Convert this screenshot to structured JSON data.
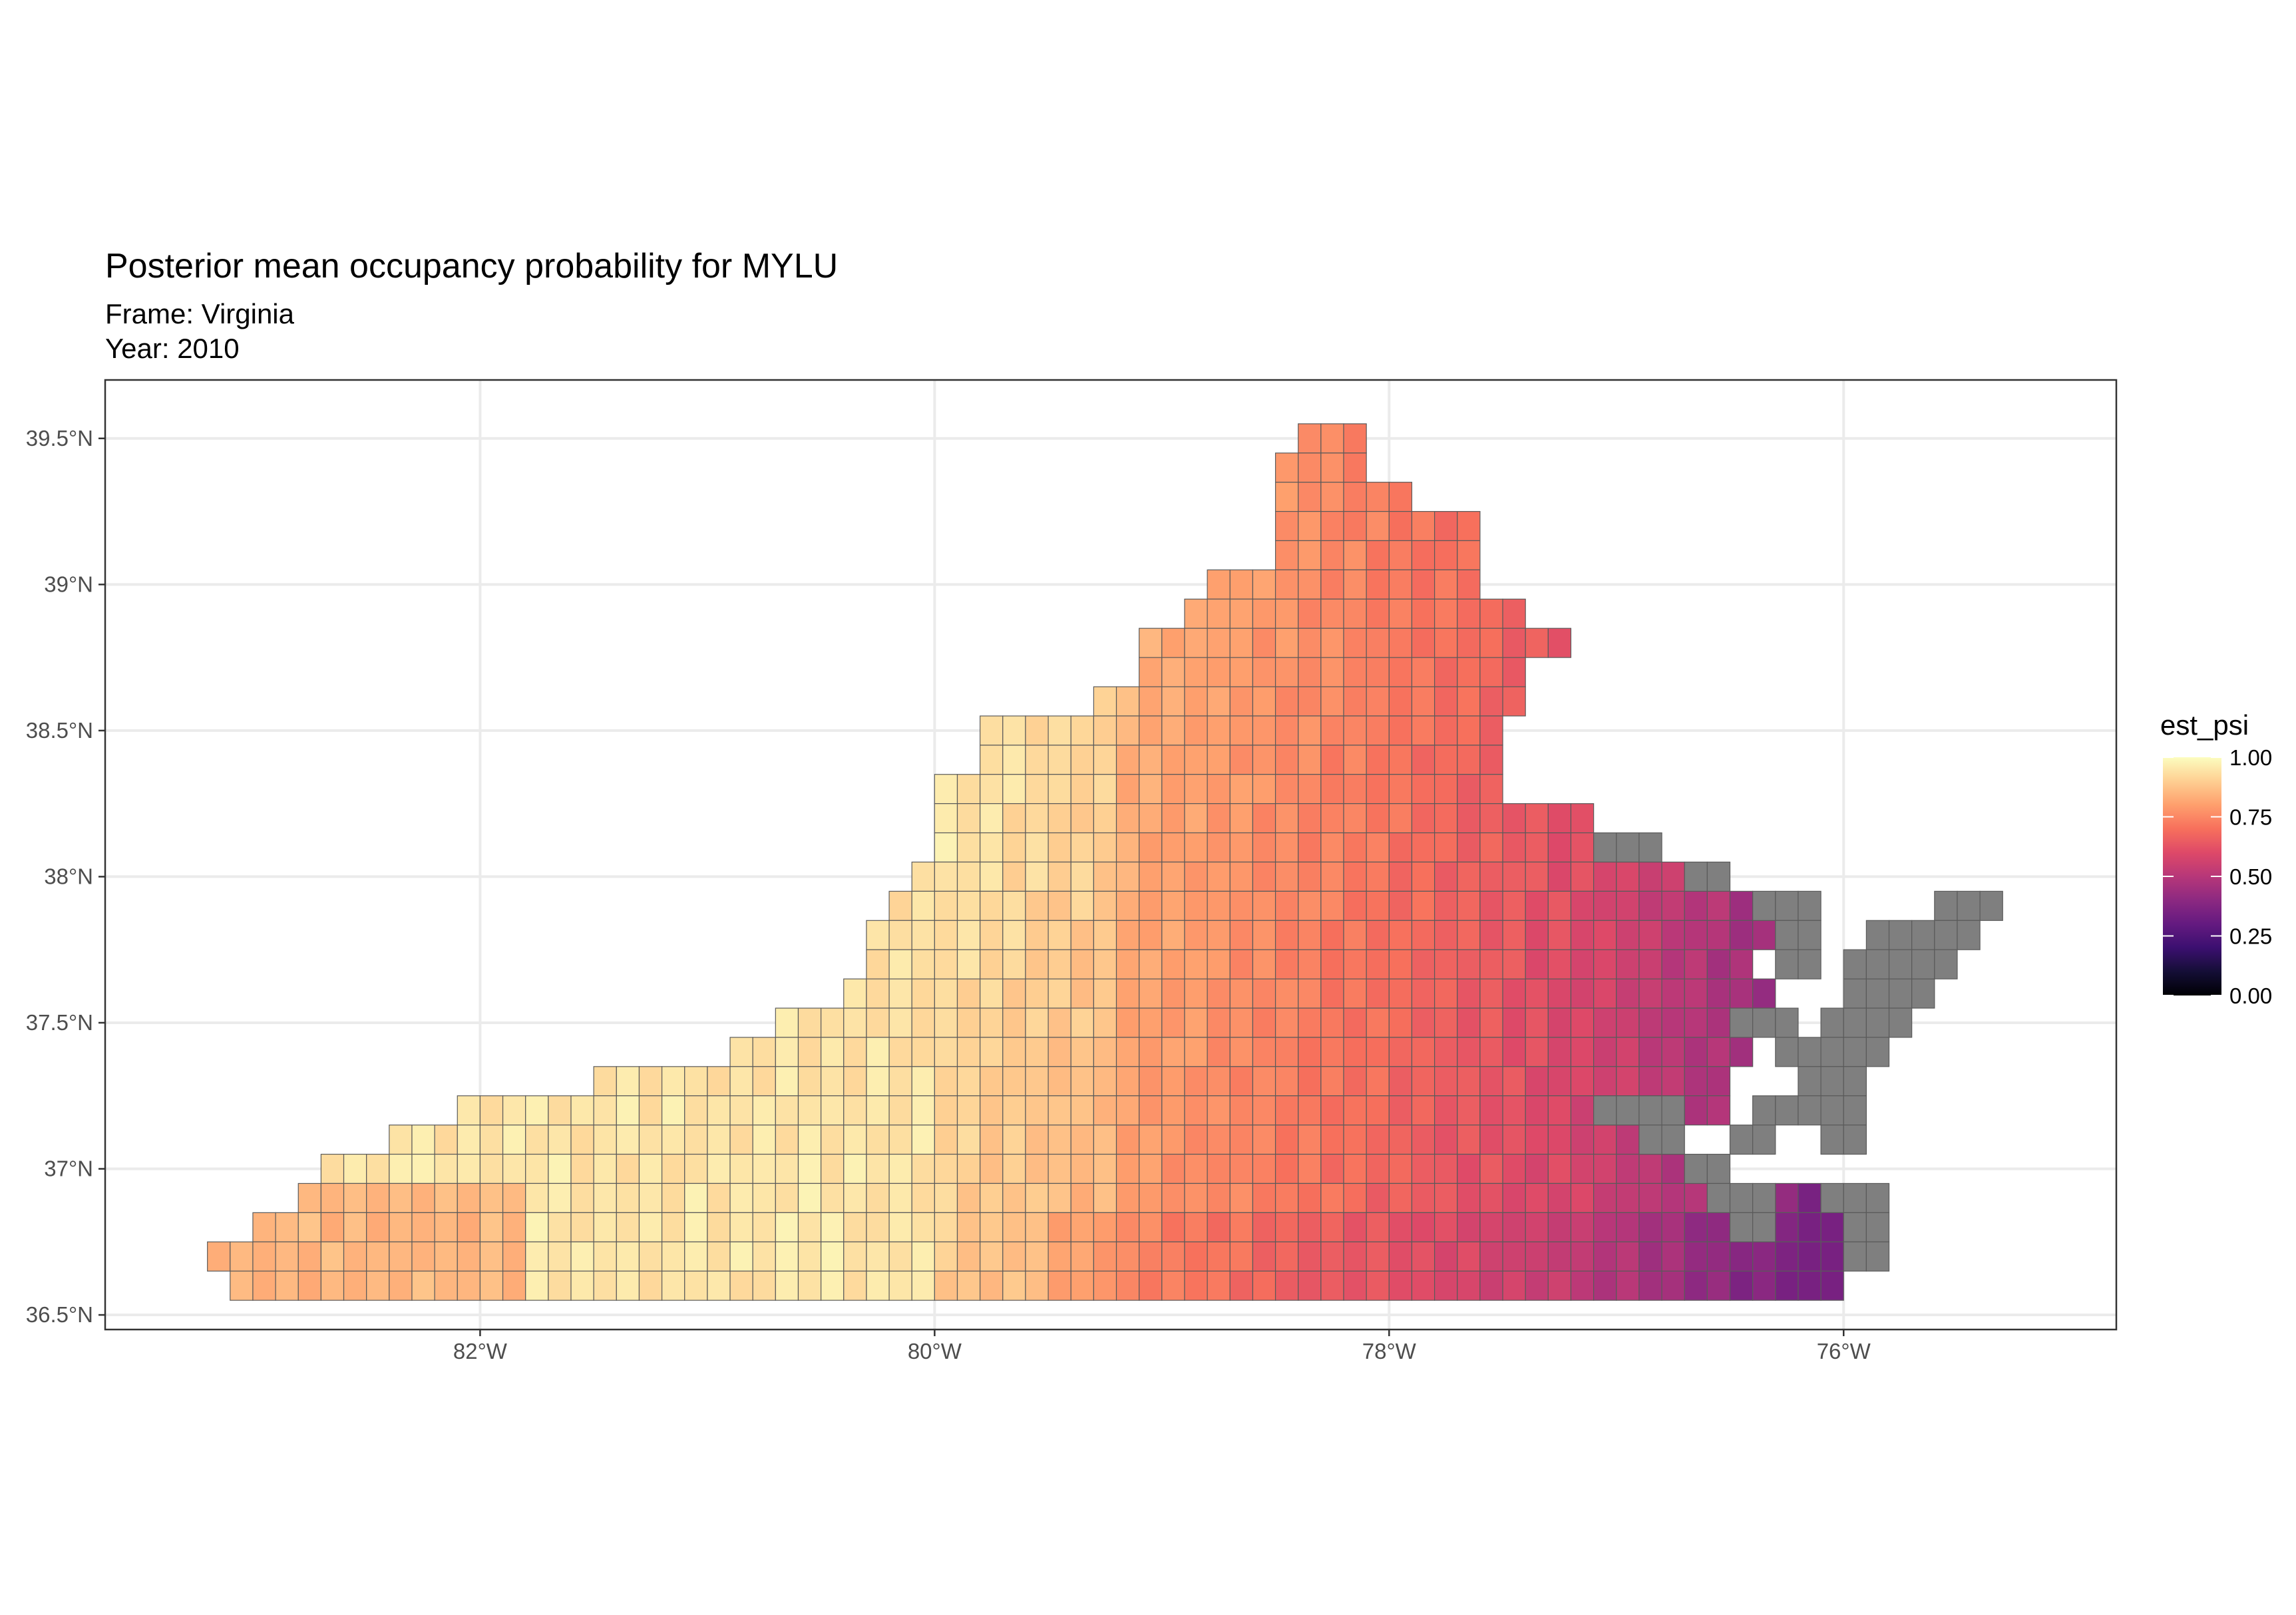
{
  "title": "Posterior mean occupancy probability for MYLU",
  "subtitle_frame": "Frame: Virginia",
  "subtitle_year": "Year: 2010",
  "colors": {
    "na_cell": "#7f7f7f",
    "cell_border": "#5a5a5a",
    "grid": "#ebebeb",
    "panel_border": "#333333"
  },
  "chart_data": {
    "type": "heatmap",
    "title": "Posterior mean occupancy probability for MYLU",
    "subtitle": [
      "Frame: Virginia",
      "Year: 2010"
    ],
    "x_ticks": [
      {
        "value": -82,
        "label": "82°W"
      },
      {
        "value": -80,
        "label": "80°W"
      },
      {
        "value": -78,
        "label": "78°W"
      },
      {
        "value": -76,
        "label": "76°W"
      }
    ],
    "y_ticks": [
      {
        "value": 36.5,
        "label": "36.5°N"
      },
      {
        "value": 37.0,
        "label": "37°N"
      },
      {
        "value": 37.5,
        "label": "37.5°N"
      },
      {
        "value": 38.0,
        "label": "38°N"
      },
      {
        "value": 38.5,
        "label": "38.5°N"
      },
      {
        "value": 39.0,
        "label": "39°N"
      },
      {
        "value": 39.5,
        "label": "39.5°N"
      }
    ],
    "xlim": [
      -83.65,
      -74.8
    ],
    "ylim": [
      36.45,
      39.7
    ],
    "grid": true,
    "cell_size_deg": [
      0.1,
      0.1
    ],
    "legend": {
      "title": "est_psi",
      "position": "right",
      "range": [
        0,
        1
      ],
      "ticks": [
        {
          "value": 1.0,
          "label": "1.00"
        },
        {
          "value": 0.75,
          "label": "0.75"
        },
        {
          "value": 0.5,
          "label": "0.50"
        },
        {
          "value": 0.25,
          "label": "0.25"
        },
        {
          "value": 0.0,
          "label": "0.00"
        }
      ],
      "na_label_shown": false
    },
    "colormap": {
      "name": "magma",
      "stops": [
        {
          "v": 0.0,
          "c": "#000004"
        },
        {
          "v": 0.1,
          "c": "#140e36"
        },
        {
          "v": 0.2,
          "c": "#3b0f70"
        },
        {
          "v": 0.3,
          "c": "#641a80"
        },
        {
          "v": 0.4,
          "c": "#8c2981"
        },
        {
          "v": 0.5,
          "c": "#b73779"
        },
        {
          "v": 0.6,
          "c": "#de4968"
        },
        {
          "v": 0.7,
          "c": "#f7705c"
        },
        {
          "v": 0.8,
          "c": "#fe9f6d"
        },
        {
          "v": 0.9,
          "c": "#fecf92"
        },
        {
          "v": 1.0,
          "c": "#fcfdbf"
        }
      ]
    },
    "region_cells": {
      "description_of_value_field": "approximate est_psi read from color",
      "rows": [
        {
          "lat": 39.5,
          "runs": [
            [
              -78.35,
              -78.15,
              0.9
            ]
          ]
        },
        {
          "lat": 39.4,
          "runs": [
            [
              -78.45,
              -78.15,
              0.88
            ]
          ]
        },
        {
          "lat": 39.3,
          "runs": [
            [
              -78.45,
              -77.95,
              0.86
            ]
          ]
        },
        {
          "lat": 39.2,
          "runs": [
            [
              -78.45,
              -77.65,
              0.85
            ]
          ]
        },
        {
          "lat": 39.1,
          "runs": [
            [
              -78.45,
              -77.65,
              0.84
            ]
          ]
        },
        {
          "lat": 39.0,
          "runs": [
            [
              -78.75,
              -77.65,
              0.85
            ]
          ]
        },
        {
          "lat": 38.9,
          "runs": [
            [
              -78.85,
              -77.45,
              0.83
            ]
          ]
        },
        {
          "lat": 38.8,
          "runs": [
            [
              -79.05,
              -77.25,
              0.8
            ]
          ]
        },
        {
          "lat": 38.7,
          "runs": [
            [
              -79.05,
              -77.45,
              0.8
            ]
          ]
        },
        {
          "lat": 38.6,
          "runs": [
            [
              -79.25,
              -77.45,
              0.8
            ]
          ]
        },
        {
          "lat": 38.5,
          "runs": [
            [
              -79.75,
              -77.55,
              0.8
            ]
          ]
        },
        {
          "lat": 38.4,
          "runs": [
            [
              -79.75,
              -77.55,
              0.8
            ]
          ]
        },
        {
          "lat": 38.3,
          "runs": [
            [
              -79.95,
              -77.55,
              0.8
            ]
          ]
        },
        {
          "lat": 38.2,
          "runs": [
            [
              -79.95,
              -77.15,
              0.8
            ]
          ]
        },
        {
          "lat": 38.1,
          "runs": [
            [
              -79.95,
              -76.95,
              0.78
            ]
          ]
        },
        {
          "lat": 38.0,
          "runs": [
            [
              -80.05,
              -76.75,
              0.75
            ]
          ]
        },
        {
          "lat": 37.9,
          "runs": [
            [
              -80.15,
              -76.35,
              0.74
            ]
          ]
        },
        {
          "lat": 37.8,
          "runs": [
            [
              -80.25,
              -76.35,
              0.73
            ]
          ]
        },
        {
          "lat": 37.7,
          "runs": [
            [
              -80.25,
              -76.45,
              0.72
            ]
          ]
        },
        {
          "lat": 37.6,
          "runs": [
            [
              -80.35,
              -76.35,
              0.72
            ]
          ]
        },
        {
          "lat": 37.5,
          "runs": [
            [
              -80.65,
              -76.35,
              0.72
            ]
          ]
        },
        {
          "lat": 37.4,
          "runs": [
            [
              -80.85,
              -76.45,
              0.72
            ]
          ]
        },
        {
          "lat": 37.3,
          "runs": [
            [
              -81.45,
              -76.55,
              0.72
            ]
          ]
        },
        {
          "lat": 37.2,
          "runs": [
            [
              -82.05,
              -76.55,
              0.72
            ]
          ]
        },
        {
          "lat": 37.1,
          "runs": [
            [
              -82.35,
              -76.75,
              0.72
            ]
          ]
        },
        {
          "lat": 37.0,
          "runs": [
            [
              -82.65,
              -76.65,
              0.72
            ]
          ]
        },
        {
          "lat": 36.9,
          "runs": [
            [
              -82.75,
              -76.15,
              0.7
            ]
          ]
        },
        {
          "lat": 36.8,
          "runs": [
            [
              -82.95,
              -75.95,
              0.68
            ]
          ]
        },
        {
          "lat": 36.7,
          "runs": [
            [
              -83.15,
              -75.95,
              0.68
            ]
          ]
        },
        {
          "lat": 36.6,
          "runs": [
            [
              -83.05,
              -76.05,
              0.66
            ]
          ]
        }
      ]
    },
    "na_cells": {
      "description": "grey cells with no estimate (Chesapeake Bay shore and Eastern Shore)",
      "rows": [
        {
          "lat": 38.1,
          "runs": [
            [
              -77.05,
              -76.85
            ]
          ]
        },
        {
          "lat": 38.0,
          "runs": [
            [
              -76.65,
              -76.55
            ]
          ]
        },
        {
          "lat": 37.9,
          "runs": [
            [
              -76.35,
              -76.15
            ],
            [
              -75.55,
              -75.35
            ]
          ]
        },
        {
          "lat": 37.8,
          "runs": [
            [
              -76.25,
              -76.15
            ],
            [
              -75.85,
              -75.45
            ]
          ]
        },
        {
          "lat": 37.7,
          "runs": [
            [
              -76.25,
              -76.15
            ],
            [
              -75.95,
              -75.55
            ]
          ]
        },
        {
          "lat": 37.6,
          "runs": [
            [
              -75.95,
              -75.65
            ]
          ]
        },
        {
          "lat": 37.5,
          "runs": [
            [
              -76.45,
              -76.25
            ],
            [
              -76.05,
              -75.75
            ]
          ]
        },
        {
          "lat": 37.4,
          "runs": [
            [
              -76.25,
              -76.15
            ],
            [
              -76.05,
              -75.85
            ]
          ]
        },
        {
          "lat": 37.3,
          "runs": [
            [
              -76.15,
              -75.95
            ]
          ]
        },
        {
          "lat": 37.2,
          "runs": [
            [
              -77.05,
              -76.75
            ],
            [
              -76.35,
              -76.25
            ],
            [
              -76.15,
              -75.95
            ]
          ]
        },
        {
          "lat": 37.1,
          "runs": [
            [
              -76.85,
              -76.75
            ],
            [
              -76.45,
              -76.35
            ],
            [
              -76.05,
              -75.95
            ]
          ]
        },
        {
          "lat": 37.0,
          "runs": [
            [
              -76.65,
              -76.55
            ]
          ]
        },
        {
          "lat": 36.9,
          "runs": [
            [
              -76.55,
              -76.35
            ],
            [
              -76.05,
              -75.85
            ]
          ]
        },
        {
          "lat": 36.8,
          "runs": [
            [
              -76.45,
              -76.35
            ],
            [
              -75.95,
              -75.85
            ]
          ]
        },
        {
          "lat": 36.7,
          "runs": [
            [
              -75.95,
              -75.85
            ]
          ]
        }
      ]
    }
  }
}
